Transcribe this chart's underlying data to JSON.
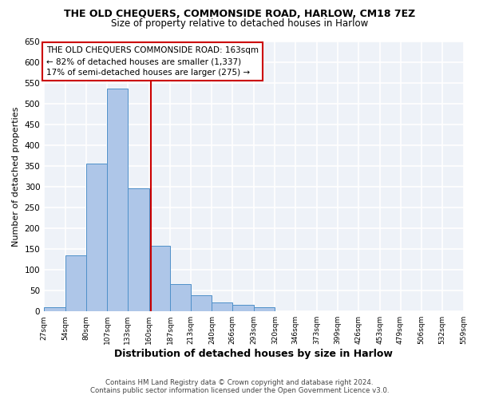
{
  "title_line1": "THE OLD CHEQUERS, COMMONSIDE ROAD, HARLOW, CM18 7EZ",
  "title_line2": "Size of property relative to detached houses in Harlow",
  "xlabel": "Distribution of detached houses by size in Harlow",
  "ylabel": "Number of detached properties",
  "bin_edges": [
    27,
    54,
    80,
    107,
    133,
    160,
    187,
    213,
    240,
    266,
    293,
    320,
    346,
    373,
    399,
    426,
    453,
    479,
    506,
    532,
    559
  ],
  "bar_heights": [
    10,
    135,
    355,
    535,
    295,
    158,
    65,
    38,
    22,
    15,
    10,
    0,
    0,
    0,
    0,
    0,
    0,
    0,
    1,
    1
  ],
  "bar_color": "#aec6e8",
  "bar_edge_color": "#4f90c9",
  "vline_x": 163,
  "vline_color": "#cc0000",
  "annotation_text": "THE OLD CHEQUERS COMMONSIDE ROAD: 163sqm\n← 82% of detached houses are smaller (1,337)\n17% of semi-detached houses are larger (275) →",
  "annotation_box_color": "#ffffff",
  "annotation_box_edge": "#cc0000",
  "ylim": [
    0,
    650
  ],
  "yticks": [
    0,
    50,
    100,
    150,
    200,
    250,
    300,
    350,
    400,
    450,
    500,
    550,
    600,
    650
  ],
  "bg_color": "#eef2f8",
  "footer1": "Contains HM Land Registry data © Crown copyright and database right 2024.",
  "footer2": "Contains public sector information licensed under the Open Government Licence v3.0."
}
